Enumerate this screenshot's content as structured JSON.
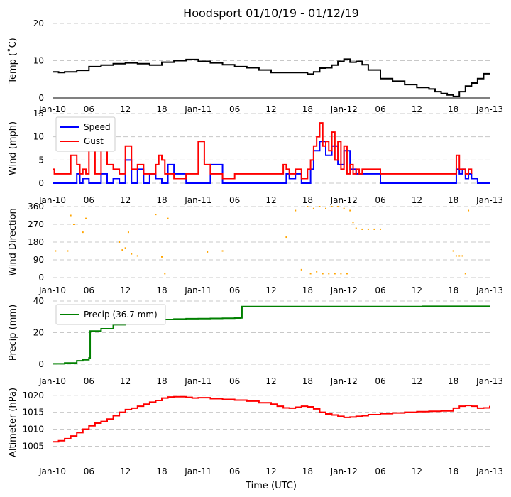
{
  "title": "Hoodsport 01/10/19 - 01/12/19",
  "x_axis_label": "Time (UTC)",
  "x_tick_labels": [
    "Jan-10",
    "06",
    "12",
    "18",
    "Jan-11",
    "06",
    "12",
    "18",
    "Jan-12",
    "06",
    "12",
    "18",
    "Jan-13"
  ],
  "x_hours": [
    0,
    6,
    12,
    18,
    24,
    30,
    36,
    42,
    48,
    54,
    60,
    66,
    72
  ],
  "chart_data": [
    {
      "type": "line",
      "ylabel": "Temp (˚C)",
      "ylim": [
        0,
        20
      ],
      "yticks": [
        "0",
        "10",
        "20"
      ],
      "x_unit": "hours since Jan-10 00 UTC",
      "series": [
        {
          "color": "#000000",
          "x": [
            0,
            1,
            2,
            3,
            4,
            6,
            8,
            10,
            12,
            14,
            16,
            18,
            20,
            22,
            24,
            26,
            28,
            30,
            32,
            34,
            36,
            38,
            40,
            42,
            43,
            44,
            45,
            46,
            47,
            48,
            49,
            50,
            51,
            52,
            54,
            56,
            58,
            60,
            62,
            63,
            64,
            65,
            66,
            67,
            68,
            69,
            70,
            71,
            72
          ],
          "y": [
            7,
            6.8,
            7,
            7,
            7.4,
            8.4,
            8.8,
            9.2,
            9.4,
            9.2,
            8.8,
            9.6,
            10,
            10.3,
            9.8,
            9.4,
            8.9,
            8.4,
            8.1,
            7.5,
            6.8,
            6.8,
            6.8,
            6.4,
            7,
            8,
            8.1,
            8.8,
            9.8,
            10.4,
            9.6,
            9.8,
            8.9,
            7.5,
            5.2,
            4.5,
            3.6,
            2.8,
            2.4,
            1.7,
            1.2,
            0.8,
            0.4,
            1.7,
            3.2,
            4.0,
            5.2,
            6.5,
            6.5
          ]
        }
      ]
    },
    {
      "type": "line",
      "ylabel": "Wind (mph)",
      "ylim": [
        0,
        15
      ],
      "yticks": [
        "0",
        "5",
        "10",
        "15"
      ],
      "legend": "top-left",
      "series": [
        {
          "name": "Speed",
          "color": "#0000ff",
          "x": [
            0,
            3,
            4,
            4.5,
            5,
            6,
            8,
            9,
            10,
            11,
            12,
            13,
            14,
            15,
            16,
            17,
            18,
            19,
            20,
            22,
            24,
            26,
            28,
            30,
            32,
            34,
            36,
            38,
            38.5,
            39,
            40,
            41,
            42,
            42.5,
            43,
            44,
            45,
            46,
            47,
            48,
            49,
            50,
            51,
            52,
            53,
            54,
            56,
            58,
            60,
            62,
            64,
            66,
            66.5,
            67,
            67.5,
            68,
            68.5,
            69,
            70,
            72
          ],
          "y": [
            0,
            0,
            2,
            0,
            1,
            0,
            2,
            0,
            1,
            0,
            5,
            0,
            3,
            0,
            2,
            1,
            0,
            4,
            2,
            0,
            0,
            4,
            0,
            0,
            0,
            0,
            0,
            0,
            2,
            1,
            2,
            0,
            0,
            3,
            7,
            9,
            6,
            8,
            4,
            7,
            3,
            2,
            2,
            2,
            2,
            0,
            0,
            0,
            0,
            0,
            0,
            0,
            3,
            2,
            3,
            1,
            2,
            1,
            0,
            0
          ]
        },
        {
          "name": "Gust",
          "color": "#ff0000",
          "x": [
            0,
            0.3,
            3,
            4,
            4.5,
            5,
            5.5,
            6,
            7,
            7.5,
            8,
            9,
            10,
            11,
            12,
            13,
            14,
            15,
            16,
            17,
            17.5,
            18,
            18.5,
            19,
            20,
            22,
            24,
            25,
            26,
            27,
            28,
            30,
            32,
            34,
            36,
            38,
            38.5,
            39,
            40,
            41,
            42,
            42.5,
            43,
            43.5,
            44,
            44.5,
            45,
            45.5,
            46,
            46.5,
            47,
            47.5,
            48,
            48.5,
            49,
            49.5,
            50,
            50.5,
            51,
            52,
            53,
            54,
            55,
            56,
            57,
            58,
            60,
            62,
            64,
            66,
            66.5,
            67,
            67.5,
            68,
            68.5,
            69
          ],
          "y": [
            3,
            2,
            6,
            4,
            2,
            3,
            2,
            7,
            2,
            2,
            7,
            4,
            3,
            2,
            8,
            3,
            4,
            2,
            2,
            4,
            6,
            5,
            2,
            2,
            1,
            2,
            9,
            4,
            2,
            2,
            1,
            2,
            2,
            2,
            2,
            4,
            3,
            2,
            3,
            1,
            3,
            5,
            8,
            10,
            13,
            8,
            9,
            7,
            11,
            5,
            9,
            3,
            8,
            2,
            4,
            2,
            3,
            2,
            3,
            3,
            3,
            2,
            2,
            2,
            2,
            2,
            2,
            2,
            2,
            2,
            6,
            3,
            3,
            2,
            3,
            2
          ]
        }
      ]
    },
    {
      "type": "scatter",
      "ylabel": "Wind Direction",
      "ylim": [
        0,
        360
      ],
      "yticks": [
        "0",
        "90",
        "180",
        "270",
        "360"
      ],
      "series": [
        {
          "color": "#ffa500",
          "x": [
            0.5,
            2.5,
            3,
            3.5,
            5,
            5.5,
            11,
            11.5,
            12,
            12.5,
            13,
            14,
            17,
            18,
            18.5,
            19,
            25.5,
            28,
            38.5,
            40,
            41,
            42,
            42.5,
            43,
            43.5,
            44,
            44.5,
            45,
            45.5,
            46,
            46.5,
            47,
            47.5,
            48,
            48.5,
            49,
            49.5,
            50,
            51,
            52,
            53,
            54,
            66,
            66.5,
            67,
            67.5,
            68,
            68.5
          ],
          "y": [
            135,
            135,
            315,
            270,
            230,
            300,
            180,
            140,
            150,
            230,
            120,
            110,
            320,
            105,
            20,
            300,
            130,
            135,
            205,
            340,
            40,
            360,
            20,
            350,
            30,
            360,
            20,
            350,
            20,
            360,
            20,
            360,
            20,
            350,
            20,
            340,
            280,
            250,
            245,
            245,
            245,
            245,
            135,
            110,
            110,
            110,
            20,
            340
          ]
        }
      ]
    },
    {
      "type": "line",
      "ylabel": "Precip (mm)",
      "ylim": [
        0,
        40
      ],
      "yticks": [
        "0",
        "20",
        "40"
      ],
      "legend": "top-left",
      "series": [
        {
          "name": "Precip (36.7 mm)",
          "color": "#008000",
          "x": [
            0,
            2,
            4,
            5,
            6,
            6.2,
            8,
            10,
            12,
            14,
            16,
            18,
            20,
            22,
            24,
            26,
            28,
            30,
            31,
            31.2,
            40,
            50,
            60,
            61,
            62,
            72
          ],
          "y": [
            0.3,
            0.8,
            2.2,
            2.8,
            4,
            21,
            22.5,
            25,
            26,
            26.5,
            27.5,
            28.3,
            28.6,
            28.8,
            28.9,
            29,
            29.1,
            29.2,
            29.3,
            36.5,
            36.5,
            36.5,
            36.5,
            36.7,
            36.7,
            36.7
          ]
        }
      ]
    },
    {
      "type": "line",
      "ylabel": "Altimeter (hPa)",
      "ylim": [
        1003,
        1021
      ],
      "yticks": [
        "1005",
        "1010",
        "1015",
        "1020"
      ],
      "series": [
        {
          "color": "#ff0000",
          "x": [
            0,
            1,
            2,
            3,
            4,
            5,
            6,
            7,
            8,
            9,
            10,
            11,
            12,
            13,
            14,
            15,
            16,
            17,
            18,
            19,
            20,
            21,
            22,
            23,
            24,
            26,
            28,
            30,
            32,
            34,
            36,
            37,
            38,
            39,
            40,
            41,
            42,
            43,
            44,
            45,
            46,
            47,
            48,
            49,
            50,
            51,
            52,
            54,
            56,
            58,
            60,
            62,
            64,
            66,
            67,
            68,
            69,
            70,
            71,
            72
          ],
          "y": [
            1006.3,
            1006.6,
            1007.2,
            1008,
            1009,
            1010,
            1011,
            1011.8,
            1012.3,
            1013,
            1014,
            1015,
            1015.8,
            1016.2,
            1016.8,
            1017.4,
            1018,
            1018.5,
            1019.2,
            1019.5,
            1019.6,
            1019.6,
            1019.4,
            1019.2,
            1019.3,
            1019,
            1018.8,
            1018.6,
            1018.3,
            1017.8,
            1017.4,
            1016.8,
            1016.3,
            1016.2,
            1016.5,
            1016.8,
            1016.6,
            1016,
            1015,
            1014.5,
            1014.2,
            1013.8,
            1013.5,
            1013.6,
            1013.8,
            1014,
            1014.3,
            1014.6,
            1014.8,
            1015,
            1015.2,
            1015.3,
            1015.4,
            1016.2,
            1016.8,
            1017,
            1016.8,
            1016.2,
            1016.3,
            1016.9
          ]
        }
      ]
    }
  ]
}
